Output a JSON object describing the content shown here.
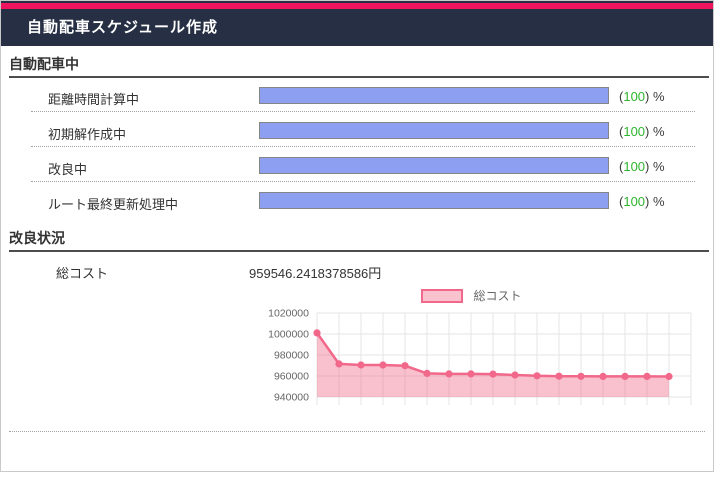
{
  "header": {
    "title": "自動配車スケジュール作成"
  },
  "symbols": {
    "open_paren": "(",
    "close_paren": ")",
    "percent": "%"
  },
  "dispatch_section": {
    "title": "自動配車中",
    "rows": [
      {
        "label": "距離時間計算中",
        "value": "100",
        "percent": 100
      },
      {
        "label": "初期解作成中",
        "value": "100",
        "percent": 100
      },
      {
        "label": "改良中",
        "value": "100",
        "percent": 100
      },
      {
        "label": "ルート最終更新処理中",
        "value": "100",
        "percent": 100
      }
    ]
  },
  "improvement_section": {
    "title": "改良状況",
    "total_cost_label": "総コスト",
    "total_cost_value": "959546.2418378586円"
  },
  "colors": {
    "accent_pink": "#ef145e",
    "header_navy": "#262f43",
    "progress_fill": "#8c9ff0",
    "value_green": "#2db52d",
    "chart_line": "#f1688a",
    "chart_fill": "rgba(241,104,138,0.42)",
    "grid": "#e4e4e4",
    "axis_text": "#666666"
  },
  "chart_data": {
    "type": "area",
    "title": "",
    "legend": [
      {
        "label": "総コスト"
      }
    ],
    "legend_position": "top",
    "grid": true,
    "x": [
      1,
      2,
      3,
      4,
      5,
      6,
      7,
      8,
      9,
      10,
      11,
      12,
      13,
      14,
      15,
      16,
      17
    ],
    "x_tick_labels_visible": false,
    "series": [
      {
        "name": "総コスト",
        "values": [
          1001000,
          971500,
          970500,
          970500,
          969800,
          962500,
          962000,
          962000,
          961800,
          961000,
          960200,
          959800,
          959700,
          959650,
          959600,
          959580,
          959546.2418378586
        ]
      }
    ],
    "ylabel": "",
    "ylim": [
      940000,
      1020000
    ],
    "yticks": [
      940000,
      960000,
      980000,
      1000000,
      1020000
    ]
  }
}
